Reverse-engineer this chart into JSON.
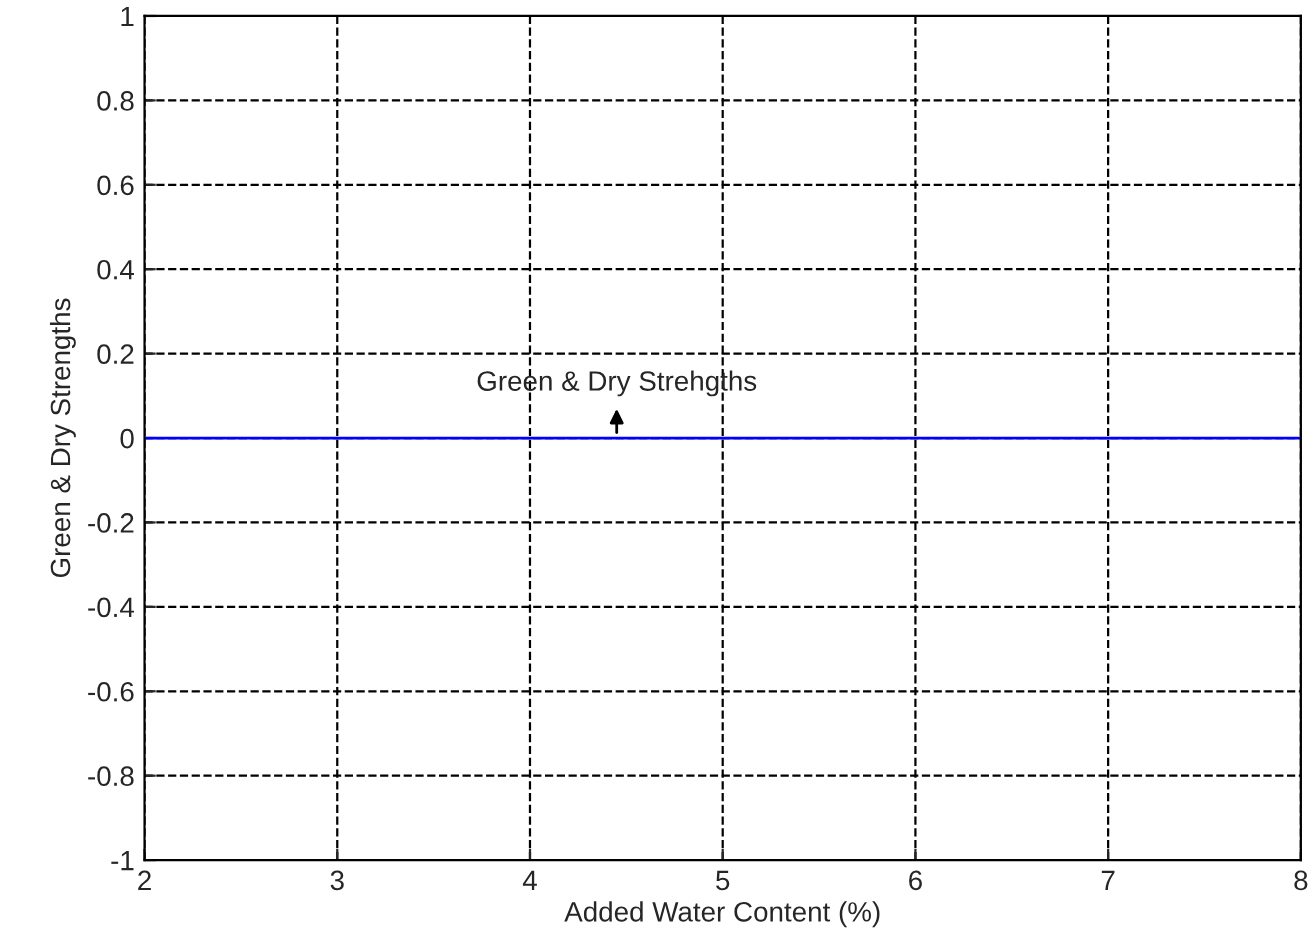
{
  "chart_data": {
    "type": "line",
    "xlabel": "Added Water Content (%)",
    "ylabel": "Green & Dry Strengths",
    "x": [
      2,
      8
    ],
    "series": [
      {
        "color": "#0000ff",
        "values": [
          0,
          0
        ]
      }
    ],
    "xlim": [
      2,
      8
    ],
    "xticks": [
      2,
      3,
      4,
      5,
      6,
      7,
      8
    ],
    "ylim": [
      -1,
      1
    ],
    "yticks": [
      -1,
      -0.8,
      -0.6,
      -0.4,
      -0.2,
      0,
      0.2,
      0.4,
      0.6,
      0.8,
      1
    ],
    "annotations": [
      {
        "text": "Green & Dry Strehgths",
        "x": 4.45,
        "y": 0
      }
    ],
    "grid": true,
    "marker": "none",
    "line_style": "solid"
  }
}
